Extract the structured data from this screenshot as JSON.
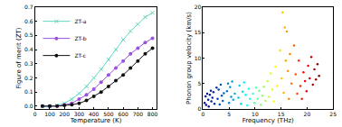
{
  "chart_data": [
    {
      "type": "line",
      "x_label": "Temperature (K)",
      "y_label": "Figure of merit (ZT)",
      "x": [
        50,
        100,
        150,
        200,
        250,
        300,
        350,
        400,
        450,
        500,
        550,
        600,
        650,
        700,
        750,
        800
      ],
      "series": [
        {
          "name": "ZT-a",
          "color": "#5fd8c0",
          "marker": "x",
          "line_style": "solid",
          "values": [
            0.0,
            0.0,
            0.005,
            0.02,
            0.05,
            0.09,
            0.14,
            0.2,
            0.26,
            0.33,
            0.4,
            0.47,
            0.53,
            0.58,
            0.63,
            0.66
          ]
        },
        {
          "name": "ZT-b",
          "color": "#9b50e0",
          "marker": "circle",
          "line_style": "solid",
          "values": [
            0.0,
            0.0,
            0.0,
            0.01,
            0.02,
            0.05,
            0.08,
            0.12,
            0.17,
            0.22,
            0.27,
            0.32,
            0.37,
            0.41,
            0.45,
            0.48
          ]
        },
        {
          "name": "ZT-c",
          "color": "#111111",
          "marker": "circle",
          "line_style": "solid",
          "values": [
            0.0,
            0.0,
            0.0,
            0.005,
            0.01,
            0.02,
            0.04,
            0.07,
            0.1,
            0.14,
            0.18,
            0.22,
            0.27,
            0.32,
            0.37,
            0.41
          ]
        }
      ],
      "xlim": [
        0,
        830
      ],
      "xticks": [
        0,
        100,
        200,
        300,
        400,
        500,
        600,
        700,
        800
      ],
      "ylim": [
        -0.02,
        0.7
      ],
      "yticks": [
        {
          "value": 0,
          "label": "0.0"
        },
        0.1,
        0.2,
        0.3,
        0.4,
        0.5,
        0.6,
        0.7
      ],
      "grid": false,
      "legend": "upper left"
    },
    {
      "type": "scatter",
      "x_label": "Frequency (THz)",
      "y_label": "Phonon group velocity (km/s)",
      "x": [
        0.3,
        0.5,
        0.6,
        0.8,
        1.0,
        1.1,
        1.3,
        1.5,
        1.6,
        1.8,
        2.0,
        2.2,
        2.6,
        2.8,
        3.0,
        3.2,
        3.4,
        3.6,
        3.8,
        4.0,
        4.6,
        4.8,
        5.0,
        5.2,
        5.4,
        5.6,
        5.8,
        6.1,
        6.8,
        7.0,
        7.3,
        7.6,
        7.9,
        8.2,
        8.5,
        8.8,
        9.0,
        9.6,
        9.9,
        10.2,
        10.5,
        10.8,
        11.1,
        11.4,
        11.7,
        12.0,
        12.4,
        12.7,
        13.0,
        13.3,
        13.6,
        13.9,
        14.2,
        14.8,
        15.1,
        15.3,
        15.5,
        15.7,
        15.9,
        16.1,
        16.3,
        16.5,
        16.7,
        17.0,
        17.5,
        17.8,
        18.1,
        18.4,
        18.7,
        19.0,
        19.3,
        19.6,
        19.9,
        20.2,
        20.5,
        20.8,
        21.1,
        21.4,
        21.7,
        22.0,
        22.3
      ],
      "values": [
        1.2,
        2.5,
        0.8,
        3.0,
        1.8,
        0.5,
        2.8,
        3.6,
        1.5,
        2.2,
        3.3,
        1.0,
        4.2,
        2.0,
        3.8,
        0.9,
        4.8,
        2.6,
        1.6,
        3.1,
        3.5,
        5.0,
        1.2,
        4.3,
        2.4,
        5.4,
        1.8,
        3.0,
        2.2,
        4.6,
        1.0,
        3.4,
        5.2,
        2.8,
        0.7,
        4.0,
        2.0,
        3.0,
        1.2,
        4.2,
        2.0,
        3.6,
        0.8,
        2.6,
        4.4,
        1.6,
        5.5,
        2.4,
        7.0,
        3.8,
        1.5,
        8.3,
        4.5,
        11.5,
        6.0,
        19.0,
        3.2,
        16.0,
        9.5,
        15.2,
        7.5,
        2.0,
        10.8,
        5.0,
        12.5,
        6.8,
        3.0,
        9.5,
        4.5,
        2.0,
        7.2,
        5.5,
        3.5,
        8.5,
        6.0,
        10.2,
        4.8,
        7.8,
        5.8,
        8.8,
        6.5
      ],
      "xlim": [
        0,
        25
      ],
      "xticks": [
        0,
        5,
        10,
        15,
        20,
        25
      ],
      "ylim": [
        0,
        20
      ],
      "yticks": [
        0,
        5,
        10,
        15,
        20
      ],
      "grid": false
    }
  ]
}
